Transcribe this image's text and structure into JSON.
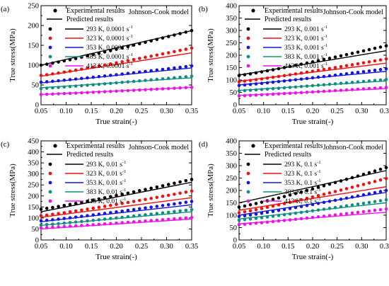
{
  "figure": {
    "x_axis_title": "True strain(-)",
    "y_axis_title": "True stress(MPa)",
    "legend_experimental": "Experimental results",
    "legend_predicted": "Predicted results",
    "model_label": "Johnson-Cook model"
  },
  "series_colors": [
    "#000000",
    "#ee1111",
    "#1515dd",
    "#0f8f7f",
    "#ee11ee"
  ],
  "chart_data": [
    {
      "type": "scatter",
      "panel_label": "(a)",
      "xlim": [
        0.05,
        0.35
      ],
      "ylim": [
        0,
        250
      ],
      "xticks": [
        0.05,
        0.1,
        0.15,
        0.2,
        0.25,
        0.3,
        0.35
      ],
      "yticks": [
        0,
        50,
        100,
        150,
        200,
        250
      ],
      "legend_position": "top-left",
      "series": [
        {
          "name": "293 K, 0.0001 s",
          "exp": [
            100,
            187
          ],
          "pred": [
            100,
            187
          ]
        },
        {
          "name": "323 K, 0.0001 s",
          "exp": [
            74,
            143
          ],
          "pred": [
            72,
            131
          ]
        },
        {
          "name": "353 K, 0.0001 s",
          "exp": [
            57,
            98
          ],
          "pred": [
            55,
            93
          ]
        },
        {
          "name": "383 K, 0.0001 s",
          "exp": [
            41,
            72
          ],
          "pred": [
            43,
            68
          ]
        },
        {
          "name": "413 K, 0.0001 s",
          "exp": [
            26,
            44
          ],
          "pred": [
            26,
            44
          ]
        }
      ]
    },
    {
      "type": "scatter",
      "panel_label": "(b)",
      "xlim": [
        0.05,
        0.35
      ],
      "ylim": [
        0,
        400
      ],
      "xticks": [
        0.05,
        0.1,
        0.15,
        0.2,
        0.25,
        0.3,
        0.35
      ],
      "yticks": [
        0,
        50,
        100,
        150,
        200,
        250,
        300,
        350,
        400
      ],
      "legend_position": "top-left",
      "series": [
        {
          "name": "293 K, 0.001 s",
          "exp": [
            118,
            238
          ],
          "pred": [
            120,
            218
          ]
        },
        {
          "name": "323 K, 0.001 s",
          "exp": [
            93,
            185
          ],
          "pred": [
            95,
            168
          ]
        },
        {
          "name": "353 K, 0.001 s",
          "exp": [
            78,
            145
          ],
          "pred": [
            80,
            135
          ]
        },
        {
          "name": "383 K, 0.001 s",
          "exp": [
            56,
            102
          ],
          "pred": [
            58,
            96
          ]
        },
        {
          "name": "413 K, 0.001 s",
          "exp": [
            36,
            70
          ],
          "pred": [
            38,
            65
          ]
        }
      ]
    },
    {
      "type": "scatter",
      "panel_label": "(c)",
      "xlim": [
        0.05,
        0.35
      ],
      "ylim": [
        0,
        450
      ],
      "xticks": [
        0.05,
        0.1,
        0.15,
        0.2,
        0.25,
        0.3,
        0.35
      ],
      "yticks": [
        0,
        50,
        100,
        150,
        200,
        250,
        300,
        350,
        400,
        450
      ],
      "legend_position": "top-left",
      "series": [
        {
          "name": "293 K, 0.01 s",
          "exp": [
            140,
            275
          ],
          "pred": [
            128,
            262
          ]
        },
        {
          "name": "323 K, 0.01 s",
          "exp": [
            110,
            222
          ],
          "pred": [
            103,
            192
          ]
        },
        {
          "name": "353 K, 0.01 s",
          "exp": [
            87,
            175
          ],
          "pred": [
            83,
            160
          ]
        },
        {
          "name": "383 K, 0.01 s",
          "exp": [
            68,
            138
          ],
          "pred": [
            66,
            128
          ]
        },
        {
          "name": "413 K, 0.01 s",
          "exp": [
            55,
            102
          ],
          "pred": [
            50,
            95
          ]
        }
      ]
    },
    {
      "type": "scatter",
      "panel_label": "(d)",
      "xlim": [
        0.05,
        0.35
      ],
      "ylim": [
        0,
        400
      ],
      "xticks": [
        0.05,
        0.1,
        0.15,
        0.2,
        0.25,
        0.3,
        0.35
      ],
      "yticks": [
        0,
        50,
        100,
        150,
        200,
        250,
        300,
        350,
        400
      ],
      "legend_position": "top-left",
      "series": [
        {
          "name": "293 K, 0.1 s",
          "exp": [
            133,
            292
          ],
          "pred": [
            150,
            280
          ]
        },
        {
          "name": "323 K, 0.1 s",
          "exp": [
            110,
            248
          ],
          "pred": [
            120,
            215
          ]
        },
        {
          "name": "353 K, 0.1 s",
          "exp": [
            95,
            200
          ],
          "pred": [
            100,
            192
          ]
        },
        {
          "name": "383 K, 0.1 s",
          "exp": [
            80,
            162
          ],
          "pred": [
            85,
            150
          ]
        },
        {
          "name": "413 K, 0.1 s",
          "exp": [
            62,
            125
          ],
          "pred": [
            65,
            112
          ]
        }
      ]
    }
  ]
}
